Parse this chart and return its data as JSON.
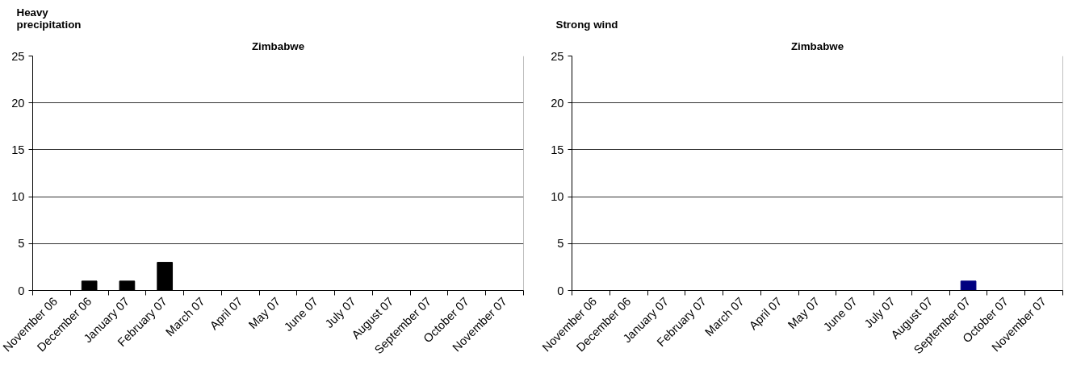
{
  "chart_data": [
    {
      "type": "bar",
      "title": "Heavy precipitation",
      "subtitle": "Zimbabwe",
      "categories": [
        "November 06",
        "December 06",
        "January 07",
        "February 07",
        "March 07",
        "April 07",
        "May 07",
        "June 07",
        "July 07",
        "August 07",
        "September 07",
        "October 07",
        "November 07"
      ],
      "series": [
        {
          "color": "#000000",
          "values": [
            0,
            1,
            1,
            3,
            0,
            0,
            0,
            0,
            0,
            0,
            0,
            0,
            0
          ]
        }
      ],
      "ylim": [
        0,
        25
      ],
      "yticks": [
        0,
        5,
        10,
        15,
        20,
        25
      ],
      "grid": "y"
    },
    {
      "type": "bar",
      "title": "Strong wind",
      "subtitle": "Zimbabwe",
      "categories": [
        "November 06",
        "December 06",
        "January 07",
        "February 07",
        "March 07",
        "April 07",
        "May 07",
        "June 07",
        "July 07",
        "August 07",
        "September 07",
        "October 07",
        "November 07"
      ],
      "series": [
        {
          "color": "#000080",
          "values": [
            0,
            0,
            0,
            0,
            0,
            0,
            0,
            0,
            0,
            0,
            1,
            0,
            0
          ]
        }
      ],
      "ylim": [
        0,
        25
      ],
      "yticks": [
        0,
        5,
        10,
        15,
        20,
        25
      ],
      "grid": "y"
    }
  ]
}
